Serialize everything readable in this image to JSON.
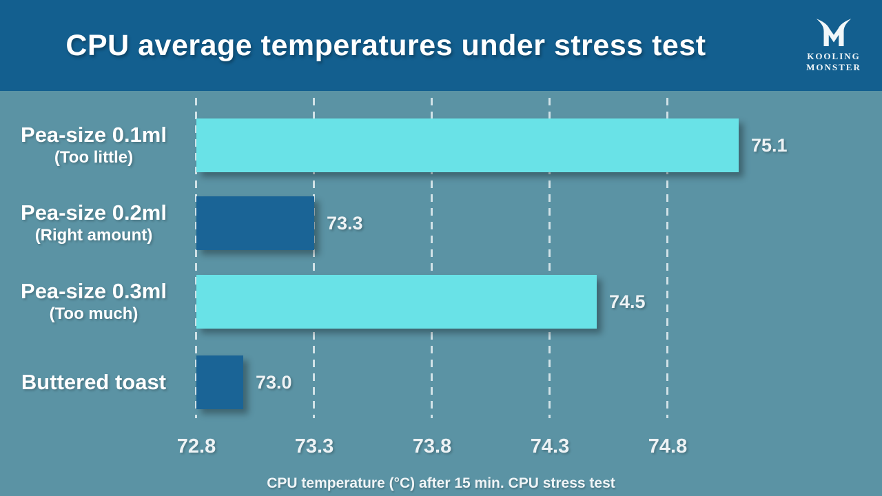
{
  "header": {
    "title": "CPU average temperatures under stress test",
    "logo_line1": "KOOLING",
    "logo_line2": "MONSTER"
  },
  "chart_data": {
    "type": "bar",
    "orientation": "horizontal",
    "title": "CPU average temperatures under stress test",
    "xlabel": "CPU temperature (°C) after 15 min. CPU stress test",
    "categories": [
      "Pea-size 0.1ml",
      "Pea-size 0.2ml",
      "Pea-size 0.3ml",
      "Buttered toast"
    ],
    "category_sublabels": [
      "(Too little)",
      "(Right amount)",
      "(Too much)",
      ""
    ],
    "values": [
      75.1,
      73.3,
      74.5,
      73.0
    ],
    "value_labels": [
      "75.1",
      "73.3",
      "74.5",
      "73.0"
    ],
    "bar_colors": [
      "#69e2e7",
      "#1a6496",
      "#69e2e7",
      "#1a6496"
    ],
    "xticks": [
      72.8,
      73.3,
      73.8,
      74.3,
      74.8
    ],
    "xtick_labels": [
      "72.8",
      "73.3",
      "73.8",
      "74.3",
      "74.8"
    ],
    "xlim": [
      72.8,
      75.35
    ],
    "grid": "vertical-dashed",
    "legend": "none"
  },
  "colors": {
    "header_bg": "#135f8f",
    "chart_bg": "#5b93a4",
    "bar_cyan": "#69e2e7",
    "bar_blue": "#1a6496",
    "gridline": "#e6f0f3",
    "text": "#ffffff"
  }
}
